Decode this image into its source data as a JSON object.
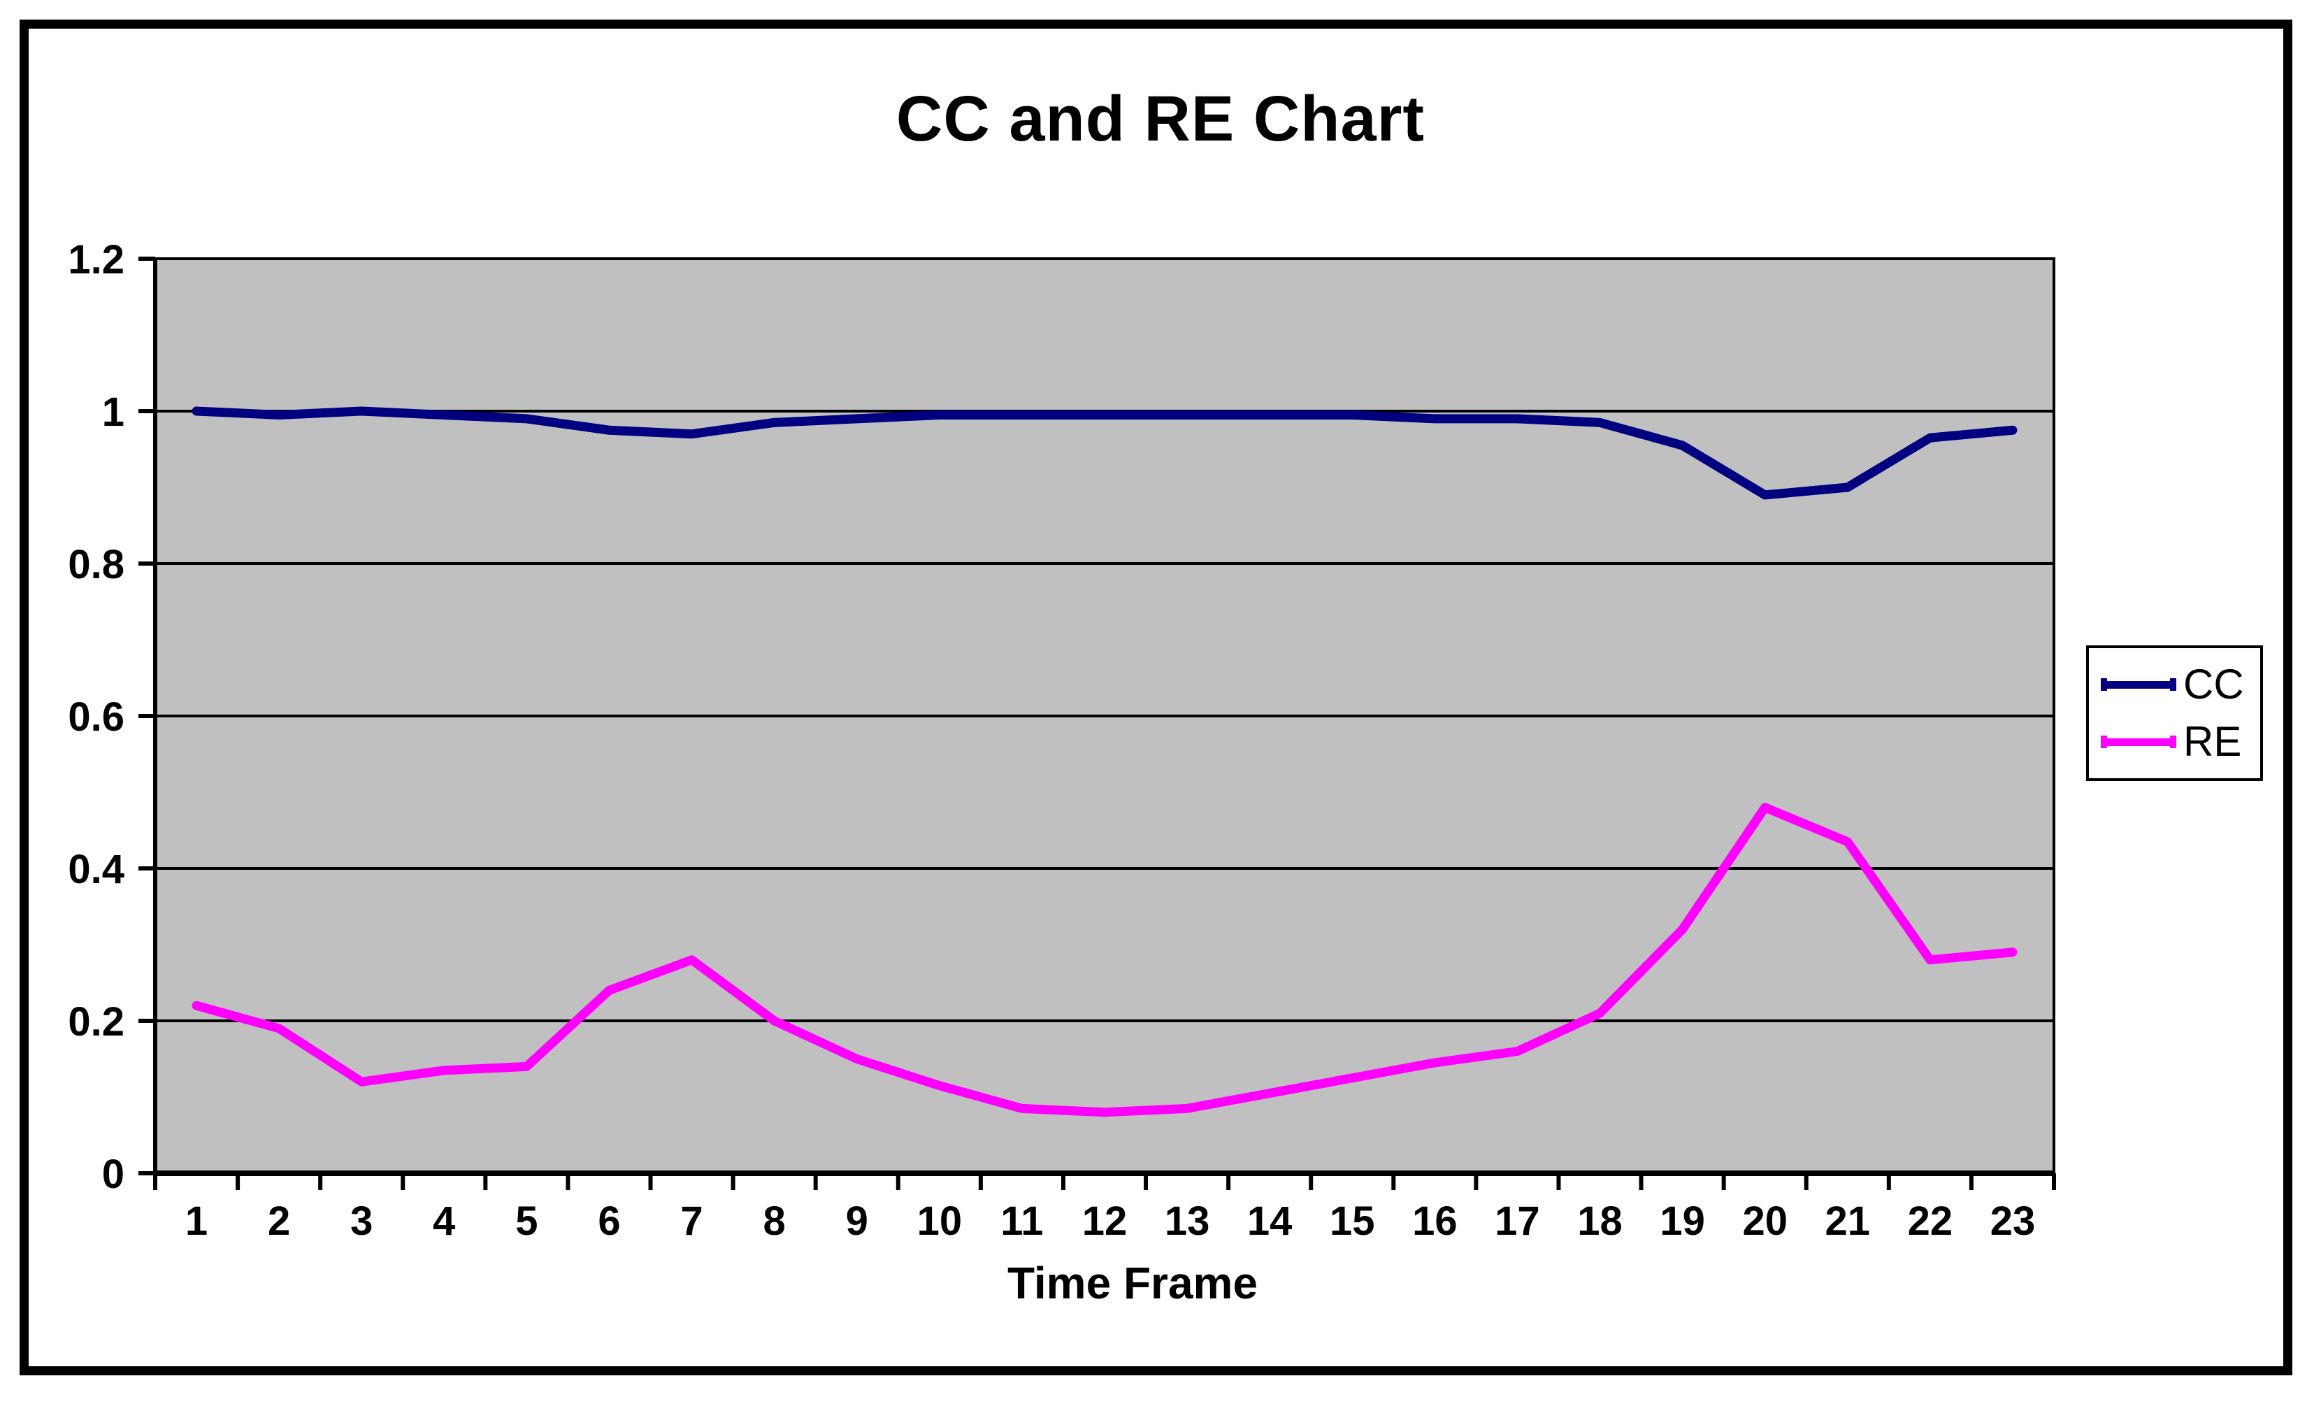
{
  "page": {
    "background_color": "#FFFFFF",
    "frame_color": "#000000"
  },
  "chart_data": {
    "type": "line",
    "title": "CC and RE Chart",
    "xlabel": "Time Frame",
    "ylabel": "",
    "categories": [
      "1",
      "2",
      "3",
      "4",
      "5",
      "6",
      "7",
      "8",
      "9",
      "10",
      "11",
      "12",
      "13",
      "14",
      "15",
      "16",
      "17",
      "18",
      "19",
      "20",
      "21",
      "22",
      "23"
    ],
    "y_ticks": [
      "0",
      "0.2",
      "0.4",
      "0.6",
      "0.8",
      "1",
      "1.2"
    ],
    "y_tick_values": [
      0,
      0.2,
      0.4,
      0.6,
      0.8,
      1,
      1.2
    ],
    "ylim": [
      0,
      1.2
    ],
    "grid": true,
    "plot_bg": "#C0C0C0",
    "grid_color": "#000000",
    "legend_position": "right",
    "series": [
      {
        "name": "CC",
        "color": "#000080",
        "values": [
          1.0,
          0.995,
          1.0,
          0.995,
          0.99,
          0.975,
          0.97,
          0.985,
          0.99,
          0.995,
          0.995,
          0.995,
          0.995,
          0.995,
          0.995,
          0.99,
          0.99,
          0.985,
          0.955,
          0.89,
          0.9,
          0.965,
          0.975
        ]
      },
      {
        "name": "RE",
        "color": "#FF00FF",
        "values": [
          0.22,
          0.19,
          0.12,
          0.135,
          0.14,
          0.24,
          0.28,
          0.2,
          0.15,
          0.115,
          0.085,
          0.08,
          0.085,
          0.105,
          0.125,
          0.145,
          0.16,
          0.21,
          0.32,
          0.48,
          0.435,
          0.28,
          0.29
        ]
      }
    ]
  }
}
